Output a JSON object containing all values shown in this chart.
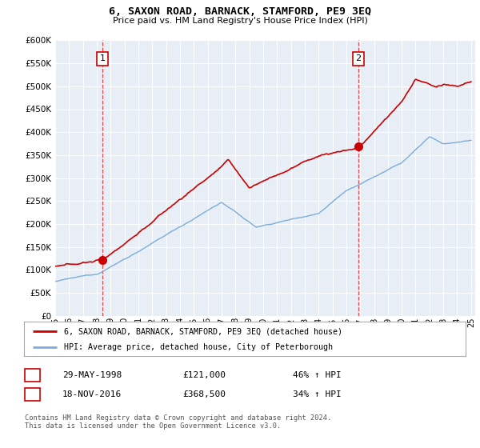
{
  "title": "6, SAXON ROAD, BARNACK, STAMFORD, PE9 3EQ",
  "subtitle": "Price paid vs. HM Land Registry's House Price Index (HPI)",
  "legend_line1": "6, SAXON ROAD, BARNACK, STAMFORD, PE9 3EQ (detached house)",
  "legend_line2": "HPI: Average price, detached house, City of Peterborough",
  "purchase1_date": "29-MAY-1998",
  "purchase1_price": "£121,000",
  "purchase1_hpi": "46% ↑ HPI",
  "purchase1_year": 1998.4,
  "purchase1_value": 121000,
  "purchase2_date": "18-NOV-2016",
  "purchase2_price": "£368,500",
  "purchase2_hpi": "34% ↑ HPI",
  "purchase2_year": 2016.88,
  "purchase2_value": 368500,
  "ylim_min": 0,
  "ylim_max": 600000,
  "ytick_step": 50000,
  "copyright_text": "Contains HM Land Registry data © Crown copyright and database right 2024.\nThis data is licensed under the Open Government Licence v3.0.",
  "vline_color": "#dd0000",
  "red_line_color": "#cc0000",
  "blue_line_color": "#7aadda",
  "plot_bg_color": "#e8eef6",
  "background_color": "#ffffff",
  "grid_color": "#ffffff",
  "xtick_labels": [
    "95",
    "96",
    "97",
    "98",
    "99",
    "00",
    "01",
    "02",
    "03",
    "04",
    "05",
    "06",
    "07",
    "08",
    "09",
    "10",
    "11",
    "12",
    "13",
    "14",
    "15",
    "16",
    "17",
    "18",
    "19",
    "20",
    "21",
    "22",
    "23",
    "24",
    "25"
  ],
  "xtick_years": [
    1995,
    1996,
    1997,
    1998,
    1999,
    2000,
    2001,
    2002,
    2003,
    2004,
    2005,
    2006,
    2007,
    2008,
    2009,
    2010,
    2011,
    2012,
    2013,
    2014,
    2015,
    2016,
    2017,
    2018,
    2019,
    2020,
    2021,
    2022,
    2023,
    2024,
    2025
  ]
}
